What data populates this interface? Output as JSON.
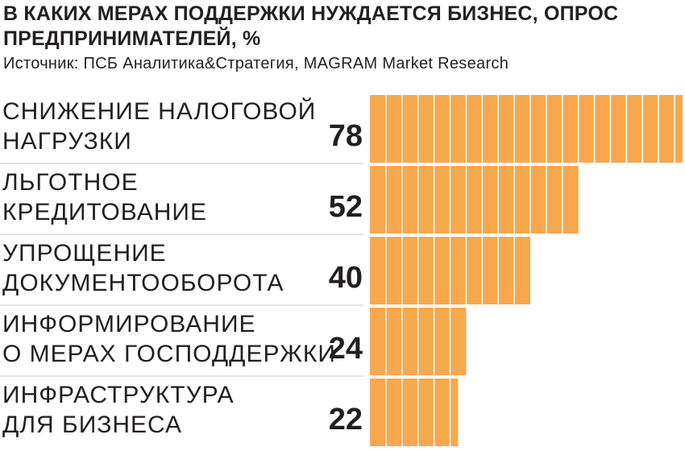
{
  "header": {
    "title": "В КАКИХ МЕРАХ ПОДДЕРЖКИ НУЖДАЕТСЯ БИЗНЕС, ОПРОС ПРЕДПРИНИМАТЕЛЕЙ, %",
    "source": "Источник: ПСБ Аналитика&Стратегия, MAGRAM Market Research"
  },
  "colors": {
    "bar": "#f7a84d",
    "segment_line": "#ffffff",
    "text": "#231f20",
    "divider": "#c8c8c8"
  },
  "chart_data": {
    "type": "bar",
    "orientation": "horizontal",
    "title": "В КАКИХ МЕРАХ ПОДДЕРЖКИ НУЖДАЕТСЯ БИЗНЕС, ОПРОС ПРЕДПРИНИМАТЕЛЕЙ, %",
    "categories": [
      [
        "СНИЖЕНИЕ НАЛОГОВОЙ",
        "НАГРУЗКИ"
      ],
      [
        "ЛЬГОТНОЕ",
        "КРЕДИТОВАНИЕ"
      ],
      [
        "УПРОЩЕНИЕ",
        "ДОКУМЕНТООБОРОТА"
      ],
      [
        "ИНФОРМИРОВАНИЕ",
        "О МЕРАХ ГОСПОДДЕРЖКИ"
      ],
      [
        "ИНФРАСТРУКТУРА",
        "ДЛЯ БИЗНЕСА"
      ]
    ],
    "values": [
      78,
      52,
      40,
      24,
      22
    ],
    "value_labels": [
      "78",
      "52",
      "40",
      "24",
      "22"
    ],
    "xlim": [
      0,
      78
    ],
    "segment_step": 4,
    "grid": false,
    "legend": "none"
  }
}
